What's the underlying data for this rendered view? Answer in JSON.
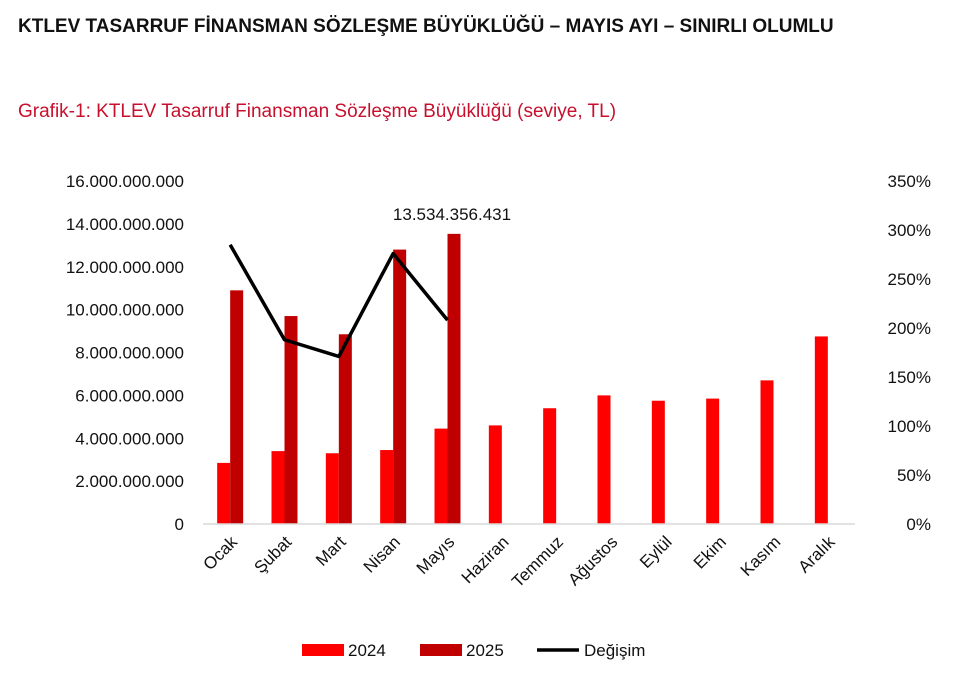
{
  "heading": "KTLEV TASARRUF FİNANSMAN SÖZLEŞME BÜYÜKLÜĞÜ – MAYIS AYI – SINIRLI OLUMLU",
  "colors": {
    "bar2024": "#ff0000",
    "bar2025": "#c00000",
    "line": "#000000",
    "subtitle": "#c8102e",
    "axis": "#d9d9d9"
  },
  "chart_data": {
    "type": "bar",
    "title": "Grafik-1: KTLEV Tasarruf Finansman Sözleşme Büyüklüğü (seviye, TL)",
    "categories": [
      "Ocak",
      "Şubat",
      "Mart",
      "Nisan",
      "Mayıs",
      "Haziran",
      "Temmuz",
      "Ağustos",
      "Eylül",
      "Ekim",
      "Kasım",
      "Aralık"
    ],
    "series": [
      {
        "name": "2024",
        "type": "bar",
        "axis": "left",
        "values": [
          2850000000,
          3400000000,
          3300000000,
          3450000000,
          4450000000,
          4600000000,
          5400000000,
          6000000000,
          5750000000,
          5850000000,
          6700000000,
          8750000000
        ]
      },
      {
        "name": "2025",
        "type": "bar",
        "axis": "left",
        "values": [
          10900000000,
          9700000000,
          8850000000,
          12800000000,
          13534356431,
          null,
          null,
          null,
          null,
          null,
          null,
          null
        ]
      },
      {
        "name": "Değişim",
        "type": "line",
        "axis": "right",
        "values": [
          285,
          188,
          171,
          276,
          208,
          null,
          null,
          null,
          null,
          null,
          null,
          null
        ]
      }
    ],
    "yLeft": {
      "min": 0,
      "max": 16000000000,
      "ticks": [
        "0",
        "2.000.000.000",
        "4.000.000.000",
        "6.000.000.000",
        "8.000.000.000",
        "10.000.000.000",
        "12.000.000.000",
        "14.000.000.000",
        "16.000.000.000"
      ]
    },
    "yRight": {
      "min": 0,
      "max": 350,
      "ticks": [
        "0%",
        "50%",
        "100%",
        "150%",
        "200%",
        "250%",
        "300%",
        "350%"
      ]
    },
    "annotation": {
      "text": "13.534.356.431",
      "category": "Mayıs",
      "series": "2025"
    },
    "legend": {
      "position": "bottom",
      "entries": [
        "2024",
        "2025",
        "Değişim"
      ]
    }
  }
}
